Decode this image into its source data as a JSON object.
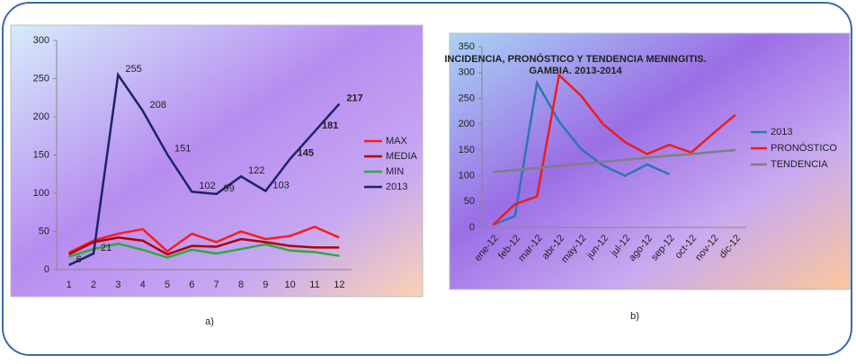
{
  "chart_data": [
    {
      "type": "line",
      "caption": "a)",
      "categories": [
        "1",
        "2",
        "3",
        "4",
        "5",
        "6",
        "7",
        "8",
        "9",
        "10",
        "11",
        "12"
      ],
      "ylim": [
        0,
        300
      ],
      "yticks": [
        0,
        50,
        100,
        150,
        200,
        250,
        300
      ],
      "grid": false,
      "legend": "right",
      "series": [
        {
          "name": "MAX",
          "color": "#ff1a1a",
          "values": [
            22,
            38,
            47,
            53,
            24,
            47,
            36,
            50,
            40,
            44,
            56,
            42
          ]
        },
        {
          "name": "MEDIA",
          "color": "#b00000",
          "values": [
            20,
            36,
            42,
            38,
            20,
            31,
            30,
            40,
            36,
            31,
            29,
            29
          ]
        },
        {
          "name": "MIN",
          "color": "#2eaa3c",
          "values": [
            17,
            27,
            34,
            26,
            16,
            26,
            21,
            27,
            33,
            25,
            23,
            18
          ]
        },
        {
          "name": "2013",
          "color": "#1c2466",
          "values": [
            6,
            21,
            255,
            208,
            151,
            102,
            99,
            122,
            103,
            145,
            181,
            217
          ],
          "show_labels": true,
          "label_colors": [
            "#222",
            "#222",
            "#222",
            "#222",
            "#222",
            "#222",
            "#222",
            "#222",
            "#222",
            "#ff1a40",
            "#ff1a40",
            "#ff1a40"
          ]
        }
      ]
    },
    {
      "type": "line",
      "caption": "b)",
      "title": [
        "INCIDENCIA, PRONÓSTICO Y TENDENCIA MENINGITIS.",
        "GAMBIA. 2013-2014"
      ],
      "categories": [
        "ene-12",
        "feb-12",
        "mar-12",
        "abr-12",
        "may-12",
        "jun-12",
        "jul-12",
        "ago-12",
        "sep-12",
        "oct-12",
        "nov-12",
        "dic-12"
      ],
      "ylim": [
        0,
        350
      ],
      "yticks": [
        0,
        50,
        100,
        150,
        200,
        250,
        300,
        350
      ],
      "grid": false,
      "legend": "right",
      "series": [
        {
          "name": "2013",
          "color": "#2e75b6",
          "values": [
            5,
            22,
            280,
            205,
            152,
            120,
            100,
            122,
            103,
            null,
            null,
            null
          ]
        },
        {
          "name": "PRONÓSTICO",
          "color": "#ee1c1c",
          "values": [
            5,
            45,
            60,
            295,
            255,
            200,
            165,
            142,
            160,
            145,
            182,
            218
          ]
        },
        {
          "name": "TENDENCIA",
          "color": "#7f7f7f",
          "values": [
            107,
            111,
            115,
            119,
            123,
            127,
            131,
            135,
            139,
            142,
            146,
            150
          ]
        }
      ]
    }
  ]
}
